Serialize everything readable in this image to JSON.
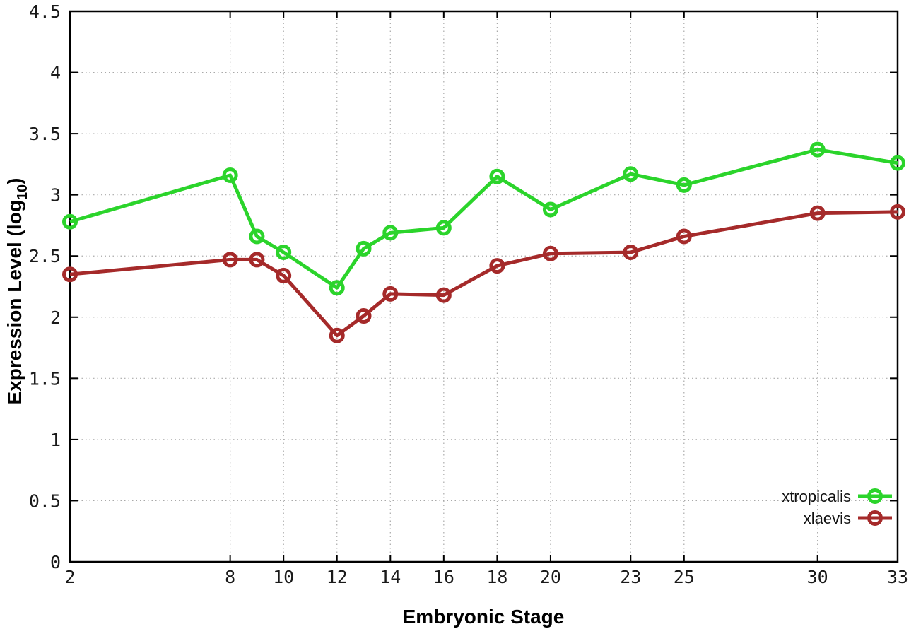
{
  "chart_data": {
    "type": "line",
    "title": "",
    "xlabel": "Embryonic Stage",
    "ylabel": "Expression Level (log10)",
    "ylabel_parts": {
      "main": "Expression Level (log",
      "sub": "10",
      "close": ")"
    },
    "xlim": [
      2,
      33
    ],
    "ylim": [
      0,
      4.5
    ],
    "xticks": [
      2,
      8,
      10,
      12,
      14,
      16,
      18,
      20,
      23,
      25,
      30,
      33
    ],
    "xtick_labels": [
      "2",
      "8",
      "10",
      "12",
      "14",
      "16",
      "18",
      "20",
      "23",
      "25",
      "30",
      "33"
    ],
    "yticks": [
      0,
      0.5,
      1,
      1.5,
      2,
      2.5,
      3,
      3.5,
      4,
      4.5
    ],
    "ytick_labels": [
      "0",
      "0.5",
      "1",
      "1.5",
      "2",
      "2.5",
      "3",
      "3.5",
      "4",
      "4.5"
    ],
    "grid": true,
    "grid_style": "dotted",
    "legend_position": "bottom-right",
    "marker": "open-circle",
    "x": [
      2,
      8,
      9,
      10,
      12,
      13,
      14,
      16,
      18,
      20,
      23,
      25,
      30,
      33
    ],
    "series": [
      {
        "name": "xtropicalis",
        "color": "#2bd42b",
        "values": [
          2.78,
          3.16,
          2.66,
          2.53,
          2.24,
          2.56,
          2.69,
          2.73,
          3.15,
          2.88,
          3.17,
          3.08,
          3.37,
          3.26
        ]
      },
      {
        "name": "xlaevis",
        "color": "#a52a2a",
        "values": [
          2.35,
          2.47,
          2.47,
          2.34,
          1.85,
          2.01,
          2.19,
          2.18,
          2.42,
          2.52,
          2.53,
          2.66,
          2.85,
          2.86
        ]
      }
    ],
    "colors": {
      "grid": "#a9a9a9",
      "border": "#000000",
      "tick": "#000000",
      "background": "#ffffff"
    }
  }
}
